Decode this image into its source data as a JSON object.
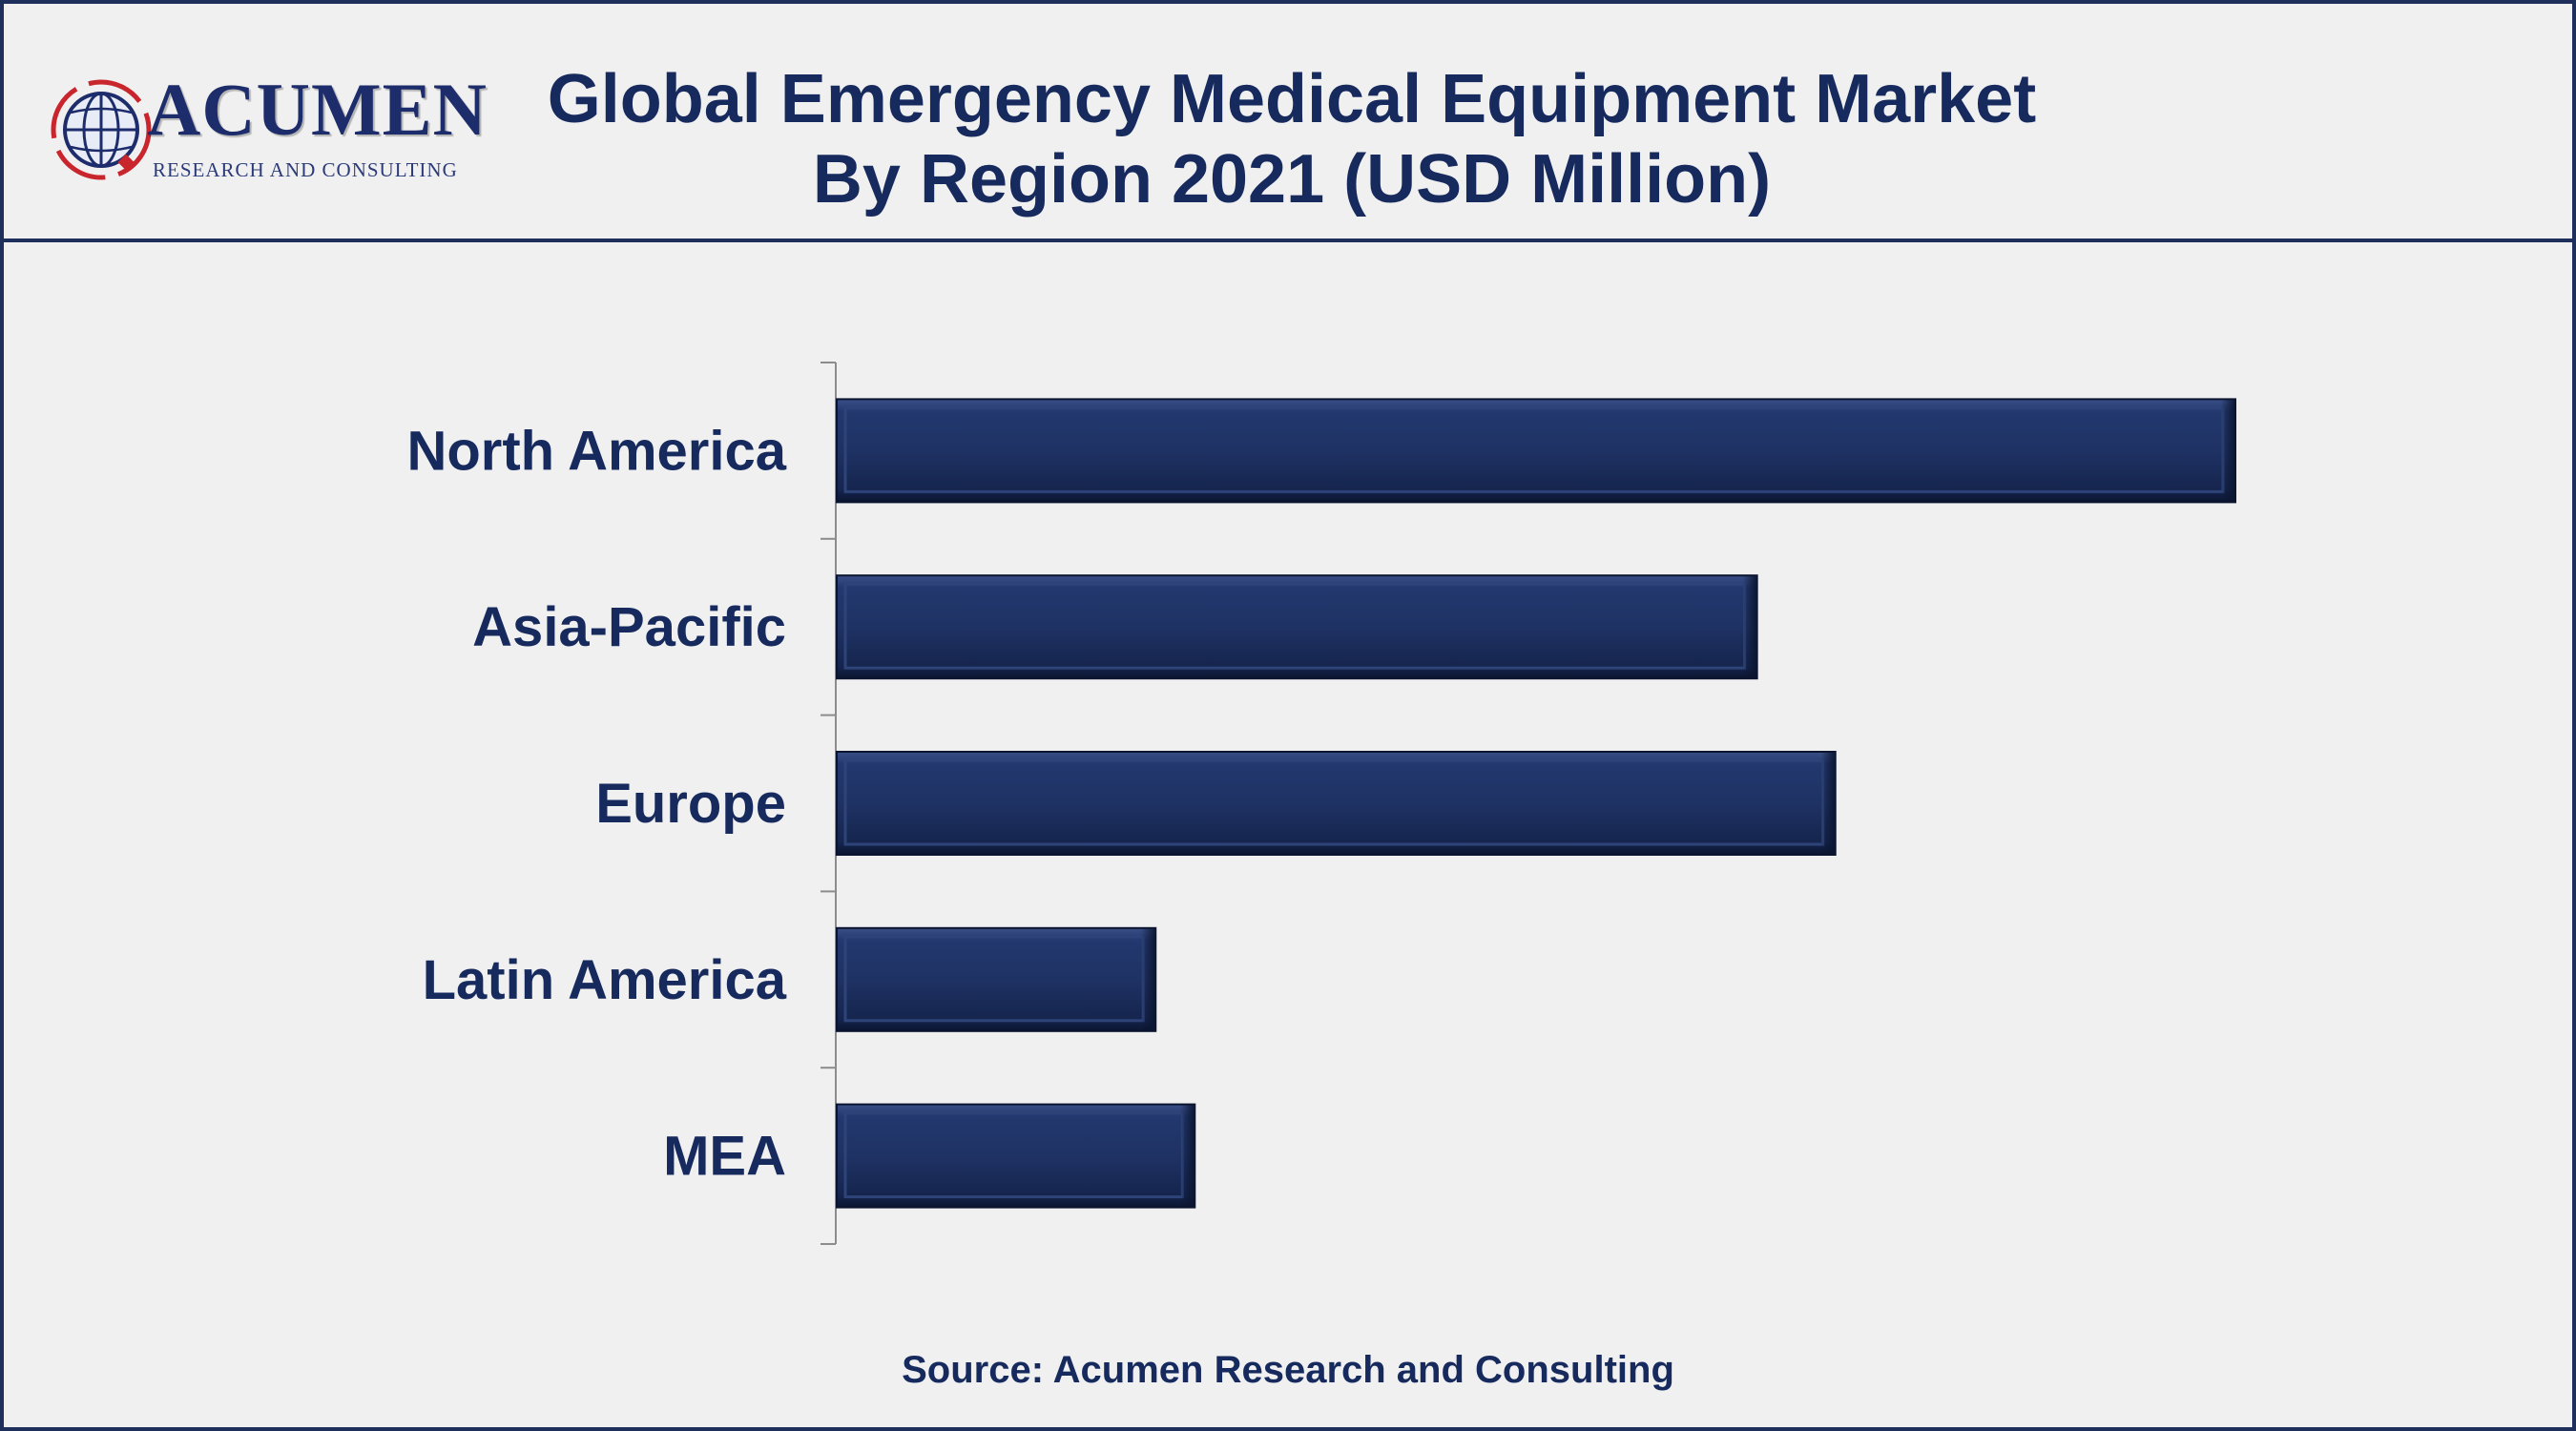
{
  "brand": {
    "name": "ACUMEN",
    "tagline": "RESEARCH AND CONSULTING"
  },
  "title": {
    "line1": "Global Emergency Medical Equipment Market",
    "line2": "By Region 2021 (USD Million)"
  },
  "source": "Source: Acumen Research and Consulting",
  "colors": {
    "bar": "#1f3264",
    "text": "#172a5e",
    "border": "#1f2f5c",
    "background": "#f0f0f0"
  },
  "chart_data": {
    "type": "bar",
    "orientation": "horizontal",
    "categories": [
      "North America",
      "Asia-Pacific",
      "Europe",
      "Latin America",
      "MEA"
    ],
    "values": [
      100,
      65.8,
      71.4,
      22.8,
      25.6
    ],
    "value_axis_visible": false,
    "grid": false,
    "legend": "none"
  }
}
